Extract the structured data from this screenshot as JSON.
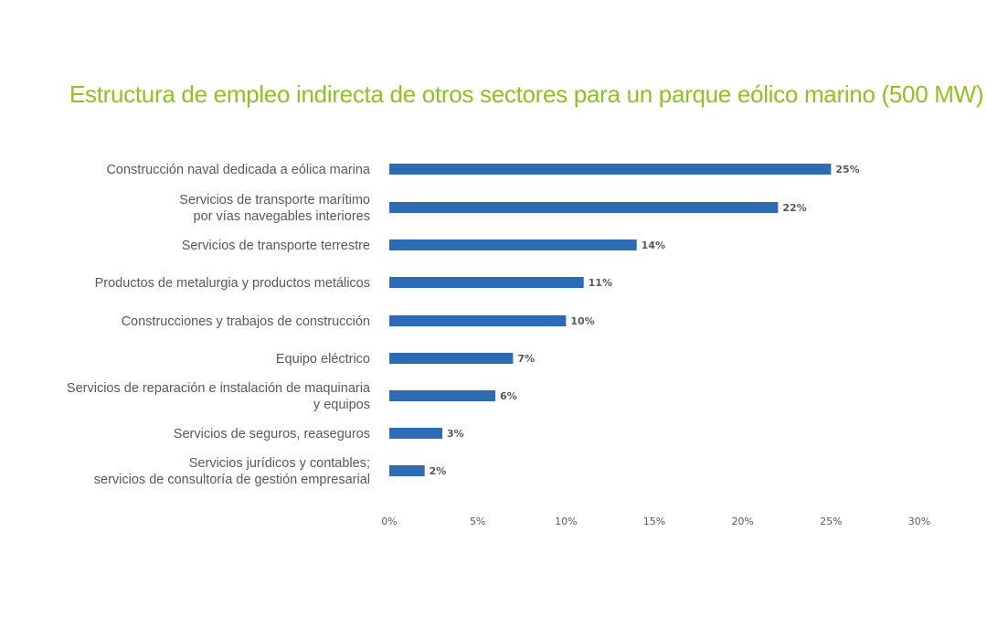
{
  "chart_data": {
    "type": "bar",
    "orientation": "horizontal",
    "title": "Estructura de empleo indirecta de otros sectores para un parque eólico marino (500 MW)",
    "categories": [
      [
        "Construcción naval dedicada a eólica marina"
      ],
      [
        "Servicios de transporte marítimo",
        "por vías navegables interiores"
      ],
      [
        "Servicios de transporte terrestre"
      ],
      [
        "Productos de metalurgia y productos metálicos"
      ],
      [
        "Construcciones y trabajos de construcción"
      ],
      [
        "Equipo eléctrico"
      ],
      [
        "Servicios de reparación e instalación de maquinaria",
        "y equipos"
      ],
      [
        "Servicios de seguros, reaseguros"
      ],
      [
        "Servicios jurídicos y contables;",
        "servicios de consultoría de gestión empresarial"
      ]
    ],
    "values": [
      25,
      22,
      14,
      11,
      10,
      7,
      6,
      3,
      2
    ],
    "value_labels": [
      "25%",
      "22%",
      "14%",
      "11%",
      "10%",
      "7%",
      "6%",
      "3%",
      "2%"
    ],
    "x_ticks": [
      "0%",
      "5%",
      "10%",
      "15%",
      "20%",
      "25%",
      "30%"
    ],
    "xlim": [
      0,
      30
    ],
    "grid": false,
    "legend": "none",
    "bar_color": "#2b6cb4",
    "title_color": "#8dc21f",
    "text_color": "#555a5e"
  }
}
